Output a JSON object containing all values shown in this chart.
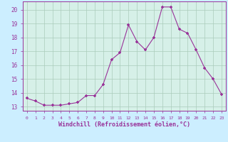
{
  "x": [
    0,
    1,
    2,
    3,
    4,
    5,
    6,
    7,
    8,
    9,
    10,
    11,
    12,
    13,
    14,
    15,
    16,
    17,
    18,
    19,
    20,
    21,
    22,
    23
  ],
  "y": [
    13.6,
    13.4,
    13.1,
    13.1,
    13.1,
    13.2,
    13.3,
    13.8,
    13.8,
    14.6,
    16.4,
    16.9,
    18.9,
    17.7,
    17.1,
    18.0,
    20.2,
    20.2,
    18.6,
    18.3,
    17.1,
    15.8,
    15.0,
    13.9
  ],
  "line_color": "#993399",
  "marker": "+",
  "marker_color": "#993399",
  "marker_size": 3.5,
  "xlabel": "Windchill (Refroidissement éolien,°C)",
  "xlabel_fontsize": 6,
  "xtick_labels": [
    "0",
    "1",
    "2",
    "3",
    "4",
    "5",
    "6",
    "7",
    "8",
    "9",
    "10",
    "11",
    "12",
    "13",
    "14",
    "15",
    "16",
    "17",
    "18",
    "19",
    "20",
    "21",
    "22",
    "23"
  ],
  "ytick_values": [
    13,
    14,
    15,
    16,
    17,
    18,
    19,
    20
  ],
  "ylim": [
    12.7,
    20.6
  ],
  "xlim": [
    -0.5,
    23.5
  ],
  "bg_color": "#cceeff",
  "grid_color": "#aaccbb",
  "plot_bg": "#d6f0e8"
}
